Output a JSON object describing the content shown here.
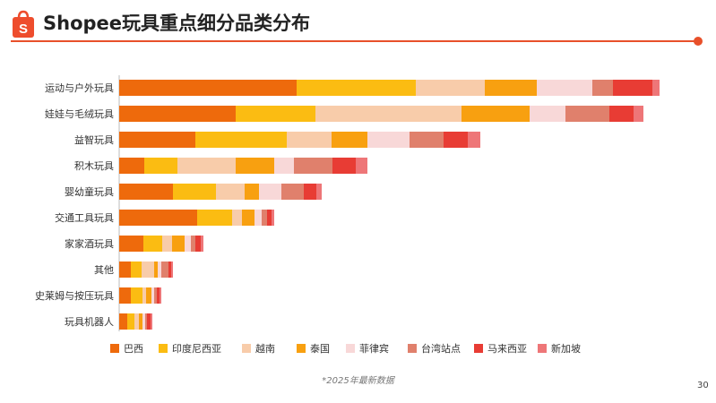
{
  "header": {
    "title": "Shopee玩具重点细分品类分布"
  },
  "footer": {
    "note": "*2025年最新数据",
    "page_number": "30"
  },
  "chart_data": {
    "type": "bar",
    "orientation": "horizontal",
    "stacked": true,
    "title": "Shopee玩具重点细分品类分布",
    "legend_position": "bottom",
    "categories": [
      "运动与户外玩具",
      "娃娃与毛绒玩具",
      "益智玩具",
      "积木玩具",
      "婴幼童玩具",
      "交通工具玩具",
      "家家酒玩具",
      "其他",
      "史莱姆与按压玩具",
      "玩具机器人"
    ],
    "series": [
      {
        "name": "巴西",
        "color": "#ee6a0c",
        "values": [
          198,
          130,
          85,
          28,
          60,
          87,
          27,
          13,
          13,
          9
        ]
      },
      {
        "name": "印度尼西亚",
        "color": "#fbbc12",
        "values": [
          133,
          89,
          102,
          37,
          48,
          39,
          21,
          12,
          13,
          8
        ]
      },
      {
        "name": "越南",
        "color": "#f8ccaa",
        "values": [
          77,
          163,
          50,
          65,
          32,
          11,
          11,
          14,
          4,
          5
        ]
      },
      {
        "name": "泰国",
        "color": "#f8a010",
        "values": [
          58,
          76,
          40,
          43,
          16,
          14,
          14,
          4,
          6,
          4
        ]
      },
      {
        "name": "菲律宾",
        "color": "#f8d8d8",
        "values": [
          62,
          40,
          47,
          22,
          25,
          8,
          7,
          4,
          3,
          3
        ]
      },
      {
        "name": "台湾站点",
        "color": "#e0806c",
        "values": [
          23,
          49,
          38,
          43,
          25,
          6,
          5,
          8,
          3,
          2
        ]
      },
      {
        "name": "马来西亚",
        "color": "#e83c34",
        "values": [
          44,
          27,
          27,
          26,
          14,
          5,
          6,
          3,
          3,
          4
        ]
      },
      {
        "name": "新加坡",
        "color": "#ee7678",
        "values": [
          8,
          11,
          14,
          13,
          6,
          3,
          3,
          2,
          2,
          2
        ]
      }
    ]
  }
}
